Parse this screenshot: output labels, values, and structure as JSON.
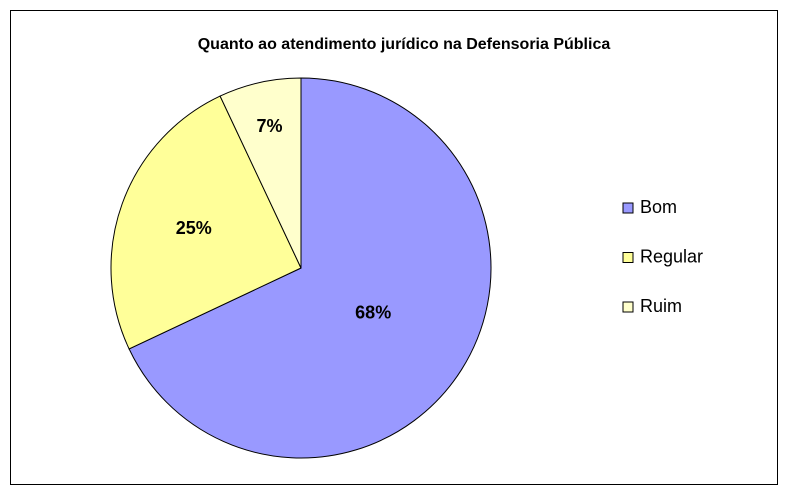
{
  "chart_data": {
    "type": "pie",
    "title": "Quanto ao atendimento jurídico na Defensoria Pública",
    "categories": [
      "Bom",
      "Regular",
      "Ruim"
    ],
    "values": [
      68,
      25,
      7
    ],
    "value_labels": [
      "68%",
      "25%",
      "7%"
    ],
    "colors": [
      "#9999ff",
      "#ffff99",
      "#ffffcc"
    ],
    "legend": "right"
  }
}
